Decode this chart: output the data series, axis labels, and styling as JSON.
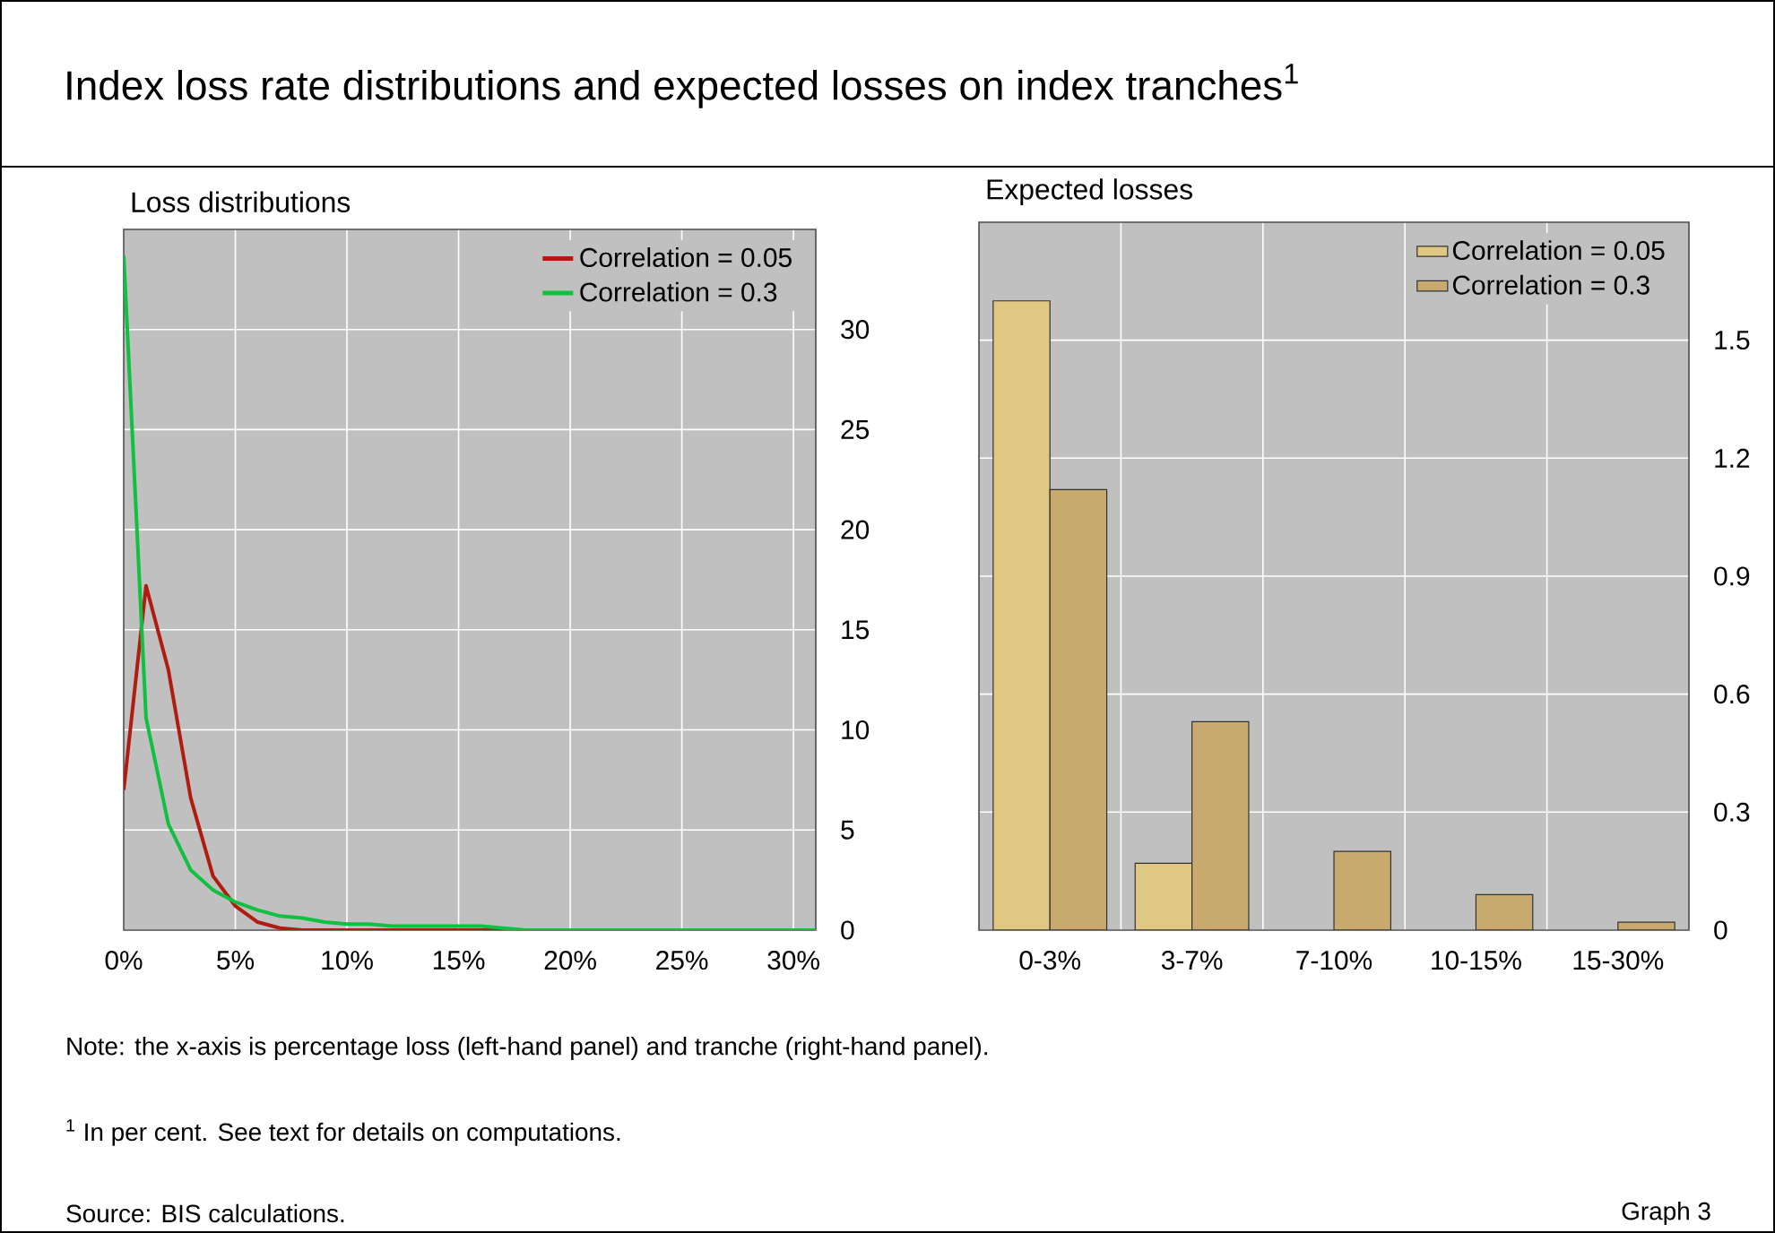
{
  "chart_data": [
    {
      "type": "other",
      "title": "Index loss rate distributions and expected losses on index tranches$^{1}$",
      "annotations": [
        "Note: the x-axis is percentage loss (left-hand panel) and tranche (right-hand panel).",
        "$^{1}$  In per cent. See text for details on computations.",
        "Source: BIS calculations.",
        "Graph 3"
      ]
    },
    {
      "type": "line",
      "title": "Loss distributions",
      "x": [
        0,
        1,
        2,
        3,
        4,
        5,
        6,
        7,
        8,
        9,
        10,
        11,
        12,
        13,
        14,
        15,
        16,
        17,
        18,
        19,
        20,
        21,
        22,
        23,
        24,
        25,
        26,
        27,
        28,
        29,
        30,
        31
      ],
      "xlim": [
        0,
        31
      ],
      "xticks": [
        {
          "value": 0,
          "label": "0%"
        },
        {
          "value": 5,
          "label": "5%"
        },
        {
          "value": 10,
          "label": "10%"
        },
        {
          "value": 15,
          "label": "15%"
        },
        {
          "value": 20,
          "label": "20%"
        },
        {
          "value": 25,
          "label": "25%"
        },
        {
          "value": 30,
          "label": "30%"
        }
      ],
      "ylim": [
        0,
        35
      ],
      "yticks": [
        0,
        5,
        10,
        15,
        20,
        25,
        30
      ],
      "series": [
        {
          "name": "Correlation = 0.05",
          "color": "#b01c10",
          "values": [
            7.0,
            17.2,
            13.0,
            6.6,
            2.7,
            1.2,
            0.4,
            0.1,
            0,
            0,
            0,
            0,
            0,
            0,
            0,
            0,
            0,
            0,
            null,
            null,
            null,
            null,
            null,
            null,
            null,
            null,
            null,
            null,
            null,
            null,
            null,
            null
          ]
        },
        {
          "name": "Correlation = 0.3",
          "color": "#10c040",
          "values": [
            33.7,
            10.6,
            5.3,
            3.0,
            2.0,
            1.4,
            1.0,
            0.7,
            0.6,
            0.4,
            0.3,
            0.3,
            0.2,
            0.2,
            0.2,
            0.2,
            0.2,
            0.1,
            0,
            0,
            0,
            0,
            0,
            0,
            0,
            0,
            0,
            0,
            0,
            0,
            0,
            0
          ]
        }
      ],
      "legend": "top right",
      "grid": true,
      "line_style": "solid"
    },
    {
      "type": "bar",
      "title": "Expected losses",
      "categories": [
        "0-3%",
        "3-7%",
        "7-10%",
        "10-15%",
        "15-30%"
      ],
      "ylim": [
        0,
        1.8
      ],
      "yticks": [
        0,
        0.3,
        0.6,
        0.9,
        1.2,
        1.5
      ],
      "series": [
        {
          "name": "Correlation = 0.05",
          "color": "#e0c882",
          "values": [
            1.6,
            0.17,
            null,
            null,
            null
          ]
        },
        {
          "name": "Correlation = 0.3",
          "color": "#c8aa6e",
          "values": [
            1.12,
            0.53,
            0.2,
            0.09,
            0.02
          ]
        }
      ],
      "legend": "top right",
      "grid": true
    }
  ]
}
